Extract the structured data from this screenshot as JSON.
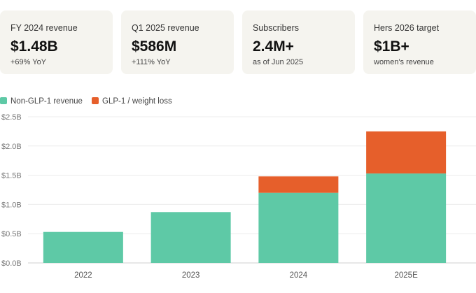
{
  "stats": [
    {
      "label": "FY 2024 revenue",
      "value": "$1.48B",
      "sub": "+69% YoY"
    },
    {
      "label": "Q1 2025 revenue",
      "value": "$586M",
      "sub": "+111% YoY"
    },
    {
      "label": "Subscribers",
      "value": "2.4M+",
      "sub": "as of Jun 2025"
    },
    {
      "label": "Hers 2026 target",
      "value": "$1B+",
      "sub": "women's revenue"
    }
  ],
  "colors": {
    "non_glp": "#5ec9a6",
    "glp": "#e65f2b",
    "card_bg": "#f5f4ef"
  },
  "chart_data": {
    "type": "bar",
    "stacked": true,
    "categories": [
      "2022",
      "2023",
      "2024",
      "2025E"
    ],
    "series": [
      {
        "name": "Non-GLP-1 revenue",
        "color": "#5ec9a6",
        "values": [
          0.53,
          0.87,
          1.2,
          1.53
        ]
      },
      {
        "name": "GLP-1 / weight loss",
        "color": "#e65f2b",
        "values": [
          0,
          0,
          0.28,
          0.72
        ]
      }
    ],
    "ylim": [
      0,
      2.5
    ],
    "yticks": [
      0,
      0.5,
      1.0,
      1.5,
      2.0,
      2.5
    ],
    "ytick_labels": [
      "$0.0B",
      "$0.5B",
      "$1.0B",
      "$1.5B",
      "$2.0B",
      "$2.5B"
    ],
    "grid": true,
    "legend": "top-left"
  }
}
